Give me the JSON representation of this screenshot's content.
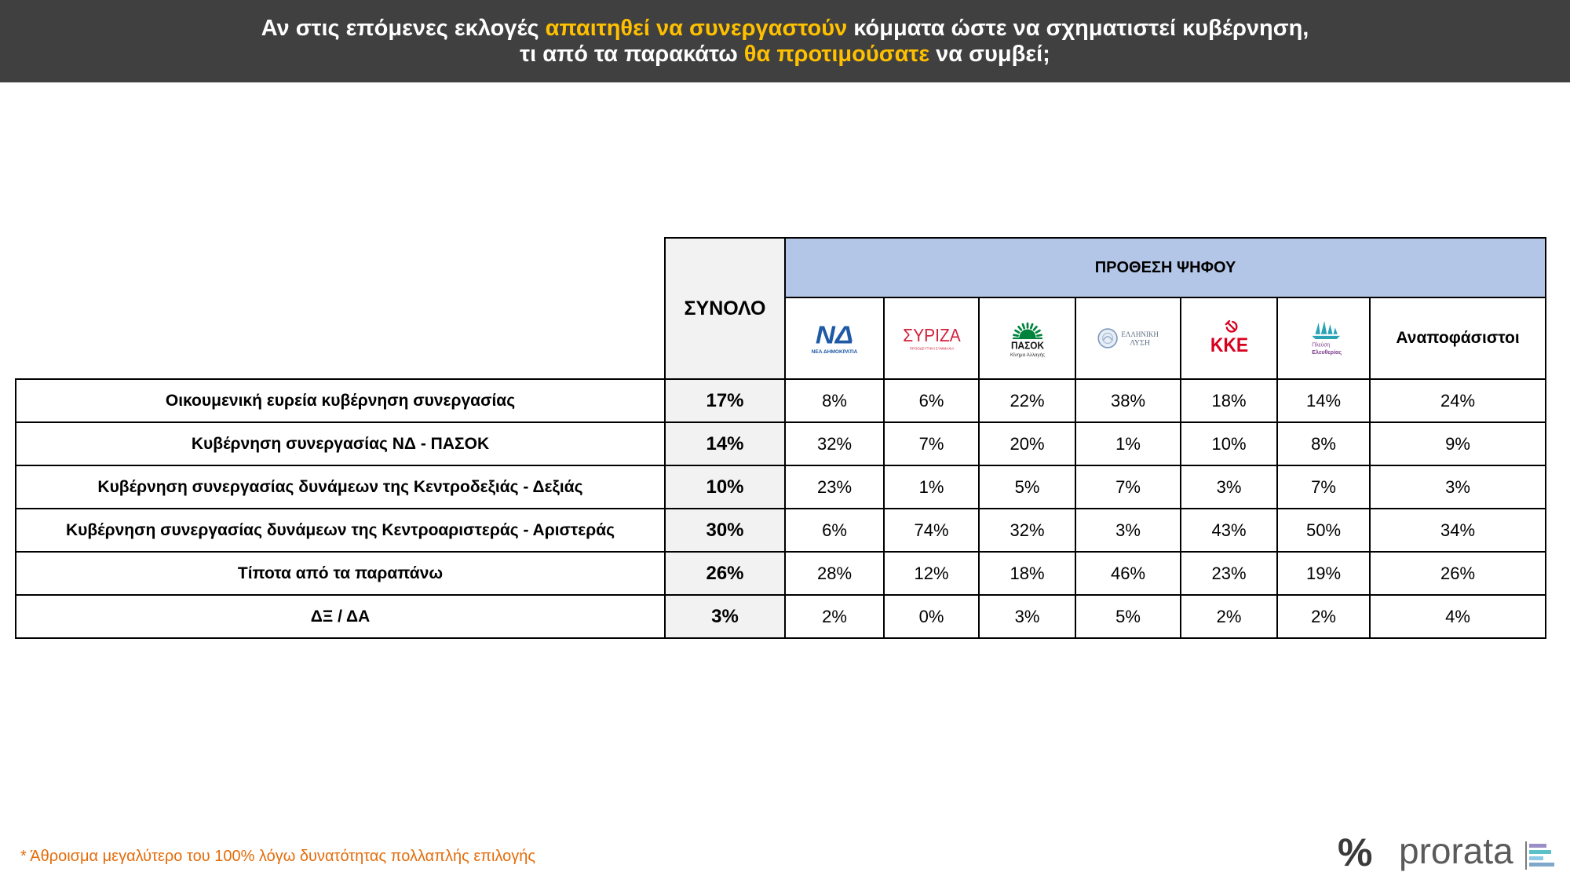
{
  "header": {
    "line1_pre": "Αν στις επόμενες εκλογές ",
    "line1_highlight": "απαιτηθεί να συνεργαστούν",
    "line1_post": " κόμματα ώστε να σχηματιστεί κυβέρνηση,",
    "line2_pre": "τι από τα παρακάτω ",
    "line2_highlight": "θα προτιμούσατε",
    "line2_post": " να συμβεί;"
  },
  "colors": {
    "accent": "#ffc000",
    "header_background": "#404040",
    "group_header_background": "#b4c6e7",
    "total_background": "#f2f2f2",
    "footnote": "#e46c0a"
  },
  "chart_data": {
    "type": "table",
    "total_label": "ΣΥΝΟΛΟ",
    "column_group": "ΠΡΟΘΕΣΗ ΨΗΦΟΥ",
    "columns": [
      {
        "icon": "nea-dimokratia-logo-icon",
        "logo_text": "ΝΔ",
        "logo_subtext": "ΝΕΑ ΔΗΜΟΚΡΑΤΙΑ"
      },
      {
        "icon": "syriza-logo-icon",
        "logo_text": "ΣΥΡΙΖΑ",
        "logo_subtext": "ΠΡΟΟΔΕΥΤΙΚΗ ΣΥΜΜΑΧΙΑ"
      },
      {
        "icon": "pasok-logo-icon",
        "logo_text": "ΠΑΣΟΚ",
        "logo_subtext": "Κίνημα Αλλαγής"
      },
      {
        "icon": "elliniki-lysi-logo-icon",
        "logo_text": "ΕΛΛΗΝΙΚΗ",
        "logo_subtext": "ΛΥΣΗ"
      },
      {
        "icon": "kke-logo-icon",
        "logo_text": "ΚΚΕ"
      },
      {
        "icon": "plefsi-eleftherias-logo-icon",
        "logo_text": "Πλεύση",
        "logo_subtext": "Ελευθερίας"
      },
      {
        "label": "Αναποφάσιστοι"
      }
    ],
    "rows": [
      {
        "label": "Οικουμενική ευρεία κυβέρνηση συνεργασίας",
        "total": "17%",
        "values": [
          "8%",
          "6%",
          "22%",
          "38%",
          "18%",
          "14%",
          "24%"
        ]
      },
      {
        "label": "Κυβέρνηση συνεργασίας ΝΔ - ΠΑΣΟΚ",
        "total": "14%",
        "values": [
          "32%",
          "7%",
          "20%",
          "1%",
          "10%",
          "8%",
          "9%"
        ]
      },
      {
        "label": "Κυβέρνηση συνεργασίας δυνάμεων της Κεντροδεξιάς - Δεξιάς",
        "total": "10%",
        "values": [
          "23%",
          "1%",
          "5%",
          "7%",
          "3%",
          "7%",
          "3%"
        ]
      },
      {
        "label": "Κυβέρνηση συνεργασίας δυνάμεων της Κεντροαριστεράς - Αριστεράς",
        "total": "30%",
        "values": [
          "6%",
          "74%",
          "32%",
          "3%",
          "43%",
          "50%",
          "34%"
        ]
      },
      {
        "label": "Τίποτα από τα παραπάνω",
        "total": "26%",
        "values": [
          "28%",
          "12%",
          "18%",
          "46%",
          "23%",
          "19%",
          "26%"
        ]
      },
      {
        "label": "ΔΞ / ΔΑ",
        "total": "3%",
        "values": [
          "2%",
          "0%",
          "3%",
          "5%",
          "2%",
          "2%",
          "4%"
        ]
      }
    ]
  },
  "footnote": "* Άθροισμα μεγαλύτερο του 100% λόγω δυνατότητας πολλαπλής επιλογής",
  "brand": {
    "symbol": "%",
    "name": "prorata",
    "icon": "prorata-bars-icon"
  }
}
